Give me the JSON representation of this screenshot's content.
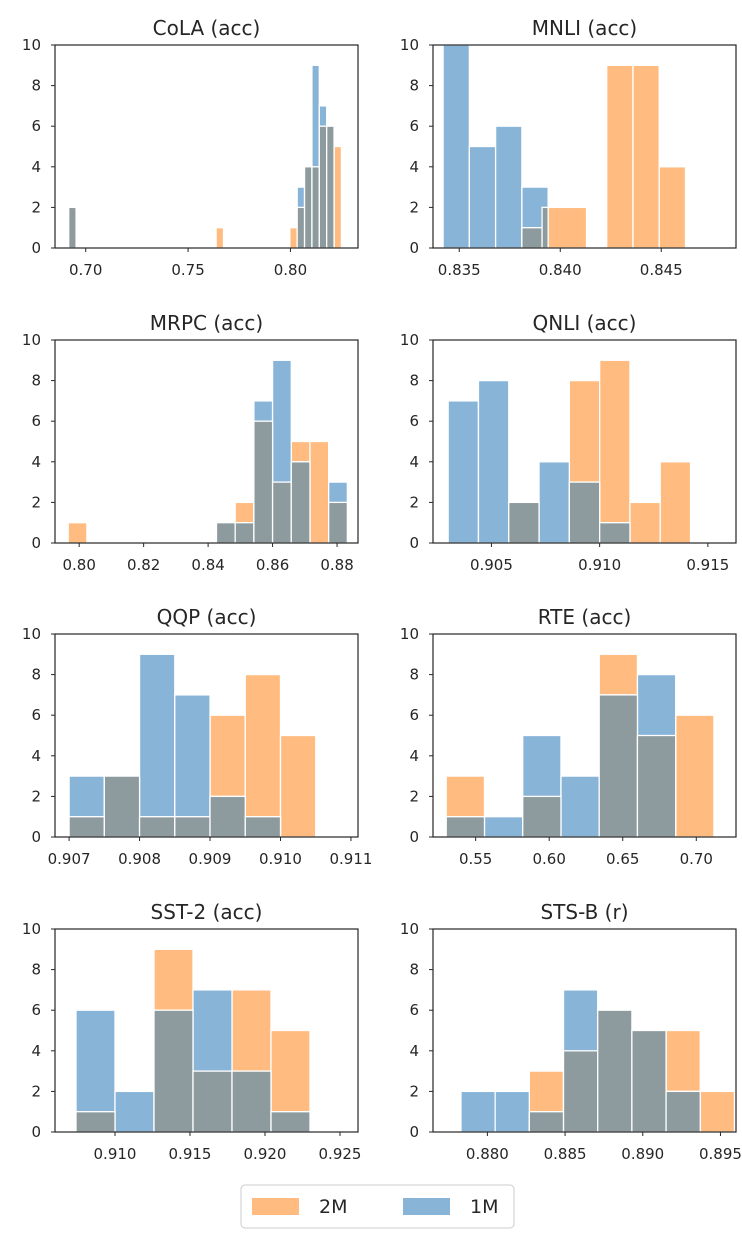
{
  "chart_data": [
    {
      "type": "histogram",
      "title": "CoLA (acc)",
      "xlim": [
        0.685,
        0.833
      ],
      "ylim": [
        0,
        10
      ],
      "xticks": [
        0.7,
        0.75,
        0.8
      ],
      "xtick_labels": [
        "0.70",
        "0.75",
        "0.80"
      ],
      "yticks": [
        0,
        2,
        4,
        6,
        8,
        10
      ],
      "series": [
        {
          "name": "2M",
          "bins": [
            [
              0.6917,
              0.6953,
              2
            ],
            [
              0.7637,
              0.7673,
              1
            ],
            [
              0.7997,
              0.8033,
              1
            ],
            [
              0.8033,
              0.8069,
              2
            ],
            [
              0.8069,
              0.8105,
              4
            ],
            [
              0.8105,
              0.8141,
              4
            ],
            [
              0.8141,
              0.8177,
              6
            ],
            [
              0.8177,
              0.8213,
              6
            ],
            [
              0.8213,
              0.8249,
              5
            ]
          ]
        },
        {
          "name": "1M",
          "bins": [
            [
              0.6917,
              0.6953,
              2
            ],
            [
              0.8033,
              0.8069,
              3
            ],
            [
              0.8069,
              0.8105,
              4
            ],
            [
              0.8105,
              0.8141,
              9
            ],
            [
              0.8141,
              0.8177,
              7
            ],
            [
              0.8177,
              0.8213,
              6
            ]
          ]
        }
      ]
    },
    {
      "type": "histogram",
      "title": "MNLI (acc)",
      "xlim": [
        0.8337,
        0.8487
      ],
      "ylim": [
        0,
        10
      ],
      "xticks": [
        0.835,
        0.84,
        0.845
      ],
      "xtick_labels": [
        "0.835",
        "0.840",
        "0.845"
      ],
      "yticks": [
        0,
        2,
        4,
        6,
        8,
        10
      ],
      "series": [
        {
          "name": "2M",
          "bins": [
            [
              0.8381,
              0.8391,
              1
            ],
            [
              0.8391,
              0.8413,
              2
            ],
            [
              0.8423,
              0.8436,
              9
            ],
            [
              0.8436,
              0.8449,
              9
            ],
            [
              0.8449,
              0.8462,
              4
            ]
          ]
        },
        {
          "name": "1M",
          "bins": [
            [
              0.8342,
              0.8355,
              10
            ],
            [
              0.8355,
              0.8368,
              5
            ],
            [
              0.8368,
              0.8381,
              6
            ],
            [
              0.8381,
              0.8394,
              3
            ]
          ]
        }
      ]
    },
    {
      "type": "histogram",
      "title": "MRPC (acc)",
      "xlim": [
        0.7925,
        0.8865
      ],
      "ylim": [
        0,
        10
      ],
      "xticks": [
        0.8,
        0.82,
        0.84,
        0.86,
        0.88
      ],
      "xtick_labels": [
        "0.80",
        "0.82",
        "0.84",
        "0.86",
        "0.88"
      ],
      "yticks": [
        0,
        2,
        4,
        6,
        8,
        10
      ],
      "series": [
        {
          "name": "2M",
          "bins": [
            [
              0.7966,
              0.8024,
              1
            ],
            [
              0.8426,
              0.8484,
              1
            ],
            [
              0.8484,
              0.8542,
              2
            ],
            [
              0.8542,
              0.86,
              6
            ],
            [
              0.86,
              0.8658,
              3
            ],
            [
              0.8658,
              0.8716,
              5
            ],
            [
              0.8716,
              0.8774,
              5
            ],
            [
              0.8774,
              0.8832,
              2
            ]
          ]
        },
        {
          "name": "1M",
          "bins": [
            [
              0.8426,
              0.8484,
              1
            ],
            [
              0.8484,
              0.8542,
              1
            ],
            [
              0.8542,
              0.86,
              7
            ],
            [
              0.86,
              0.8658,
              9
            ],
            [
              0.8658,
              0.8716,
              4
            ],
            [
              0.8774,
              0.8832,
              3
            ]
          ]
        }
      ]
    },
    {
      "type": "histogram",
      "title": "QNLI (acc)",
      "xlim": [
        0.9023,
        0.9163
      ],
      "ylim": [
        0,
        10
      ],
      "xticks": [
        0.905,
        0.91,
        0.915
      ],
      "xtick_labels": [
        "0.905",
        "0.910",
        "0.915"
      ],
      "yticks": [
        0,
        2,
        4,
        6,
        8,
        10
      ],
      "series": [
        {
          "name": "2M",
          "bins": [
            [
              0.9058,
              0.9072,
              2
            ],
            [
              0.9086,
              0.91,
              8
            ],
            [
              0.91,
              0.9114,
              9
            ],
            [
              0.9114,
              0.9128,
              2
            ],
            [
              0.9128,
              0.9142,
              4
            ]
          ]
        },
        {
          "name": "1M",
          "bins": [
            [
              0.903,
              0.9044,
              7
            ],
            [
              0.9044,
              0.9058,
              8
            ],
            [
              0.9058,
              0.9072,
              2
            ],
            [
              0.9072,
              0.9086,
              4
            ],
            [
              0.9086,
              0.91,
              3
            ],
            [
              0.91,
              0.9114,
              1
            ]
          ]
        }
      ]
    },
    {
      "type": "histogram",
      "title": "QQP (acc)",
      "xlim": [
        0.9068,
        0.9111
      ],
      "ylim": [
        0,
        10
      ],
      "xticks": [
        0.907,
        0.908,
        0.909,
        0.91,
        0.911
      ],
      "xtick_labels": [
        "0.907",
        "0.908",
        "0.909",
        "0.910",
        "0.911"
      ],
      "yticks": [
        0,
        2,
        4,
        6,
        8,
        10
      ],
      "series": [
        {
          "name": "2M",
          "bins": [
            [
              0.907,
              0.9075,
              1
            ],
            [
              0.9075,
              0.908,
              3
            ],
            [
              0.908,
              0.9085,
              1
            ],
            [
              0.9085,
              0.909,
              1
            ],
            [
              0.909,
              0.9095,
              6
            ],
            [
              0.9095,
              0.91,
              8
            ],
            [
              0.91,
              0.9105,
              5
            ]
          ]
        },
        {
          "name": "1M",
          "bins": [
            [
              0.907,
              0.9075,
              3
            ],
            [
              0.9075,
              0.908,
              3
            ],
            [
              0.908,
              0.9085,
              9
            ],
            [
              0.9085,
              0.909,
              7
            ],
            [
              0.909,
              0.9095,
              2
            ],
            [
              0.9095,
              0.91,
              1
            ]
          ]
        }
      ]
    },
    {
      "type": "histogram",
      "title": "RTE (acc)",
      "xlim": [
        0.521,
        0.727
      ],
      "ylim": [
        0,
        10
      ],
      "xticks": [
        0.55,
        0.6,
        0.65,
        0.7
      ],
      "xtick_labels": [
        "0.55",
        "0.60",
        "0.65",
        "0.70"
      ],
      "yticks": [
        0,
        2,
        4,
        6,
        8,
        10
      ],
      "series": [
        {
          "name": "2M",
          "bins": [
            [
              0.53,
              0.556,
              3
            ],
            [
              0.582,
              0.608,
              2
            ],
            [
              0.634,
              0.66,
              9
            ],
            [
              0.66,
              0.686,
              5
            ],
            [
              0.686,
              0.712,
              6
            ]
          ]
        },
        {
          "name": "1M",
          "bins": [
            [
              0.53,
              0.556,
              1
            ],
            [
              0.556,
              0.582,
              1
            ],
            [
              0.582,
              0.608,
              5
            ],
            [
              0.608,
              0.634,
              3
            ],
            [
              0.634,
              0.66,
              7
            ],
            [
              0.66,
              0.686,
              8
            ]
          ]
        }
      ]
    },
    {
      "type": "histogram",
      "title": "SST-2 (acc)",
      "xlim": [
        0.906,
        0.9262
      ],
      "ylim": [
        0,
        10
      ],
      "xticks": [
        0.91,
        0.915,
        0.92,
        0.925
      ],
      "xtick_labels": [
        "0.910",
        "0.915",
        "0.920",
        "0.925"
      ],
      "yticks": [
        0,
        2,
        4,
        6,
        8,
        10
      ],
      "series": [
        {
          "name": "2M",
          "bins": [
            [
              0.9074,
              0.91,
              1
            ],
            [
              0.9126,
              0.9152,
              9
            ],
            [
              0.9152,
              0.9178,
              3
            ],
            [
              0.9178,
              0.9204,
              7
            ],
            [
              0.9204,
              0.923,
              5
            ]
          ]
        },
        {
          "name": "1M",
          "bins": [
            [
              0.9074,
              0.91,
              6
            ],
            [
              0.91,
              0.9126,
              2
            ],
            [
              0.9126,
              0.9152,
              6
            ],
            [
              0.9152,
              0.9178,
              7
            ],
            [
              0.9178,
              0.9204,
              3
            ],
            [
              0.9204,
              0.923,
              1
            ]
          ]
        }
      ]
    },
    {
      "type": "histogram",
      "title": "STS-B (r)",
      "xlim": [
        0.8765,
        0.896
      ],
      "ylim": [
        0,
        10
      ],
      "xticks": [
        0.88,
        0.885,
        0.89,
        0.895
      ],
      "xtick_labels": [
        "0.880",
        "0.885",
        "0.890",
        "0.895"
      ],
      "yticks": [
        0,
        2,
        4,
        6,
        8,
        10
      ],
      "series": [
        {
          "name": "2M",
          "bins": [
            [
              0.8827,
              0.8849,
              3
            ],
            [
              0.8849,
              0.8871,
              4
            ],
            [
              0.8871,
              0.8893,
              6
            ],
            [
              0.8893,
              0.8915,
              5
            ],
            [
              0.8915,
              0.8937,
              5
            ],
            [
              0.8937,
              0.8959,
              2
            ]
          ]
        },
        {
          "name": "1M",
          "bins": [
            [
              0.8783,
              0.8805,
              2
            ],
            [
              0.8805,
              0.8827,
              2
            ],
            [
              0.8827,
              0.8849,
              1
            ],
            [
              0.8849,
              0.8871,
              7
            ],
            [
              0.8871,
              0.8893,
              6
            ],
            [
              0.8893,
              0.8915,
              5
            ],
            [
              0.8915,
              0.8937,
              2
            ]
          ]
        }
      ]
    }
  ],
  "colors": {
    "2M": "#ffbb80",
    "1M": "#88b4d8",
    "overlap": "#8d9a9e"
  },
  "legend": {
    "placement": "bottom-center",
    "items": [
      {
        "label": "2M",
        "color": "#ffbb80"
      },
      {
        "label": "1M",
        "color": "#88b4d8"
      }
    ]
  }
}
